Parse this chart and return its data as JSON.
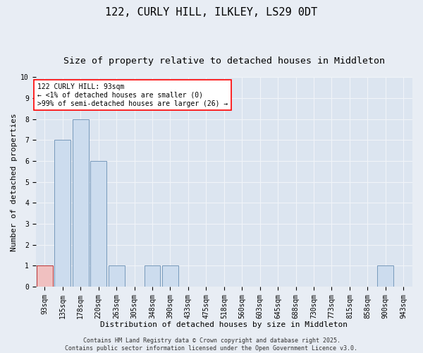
{
  "title1": "122, CURLY HILL, ILKLEY, LS29 0DT",
  "title2": "Size of property relative to detached houses in Middleton",
  "xlabel": "Distribution of detached houses by size in Middleton",
  "ylabel": "Number of detached properties",
  "categories": [
    "93sqm",
    "135sqm",
    "178sqm",
    "220sqm",
    "263sqm",
    "305sqm",
    "348sqm",
    "390sqm",
    "433sqm",
    "475sqm",
    "518sqm",
    "560sqm",
    "603sqm",
    "645sqm",
    "688sqm",
    "730sqm",
    "773sqm",
    "815sqm",
    "858sqm",
    "900sqm",
    "943sqm"
  ],
  "values": [
    1,
    7,
    8,
    6,
    1,
    0,
    1,
    1,
    0,
    0,
    0,
    0,
    0,
    0,
    0,
    0,
    0,
    0,
    0,
    1,
    0
  ],
  "bar_colors": [
    "#f0c0c0",
    "#ccdcee",
    "#ccdcee",
    "#ccdcee",
    "#ccdcee",
    "#ccdcee",
    "#ccdcee",
    "#ccdcee",
    "#ccdcee",
    "#ccdcee",
    "#ccdcee",
    "#ccdcee",
    "#ccdcee",
    "#ccdcee",
    "#ccdcee",
    "#ccdcee",
    "#ccdcee",
    "#ccdcee",
    "#ccdcee",
    "#ccdcee",
    "#ccdcee"
  ],
  "bar_edge_colors": [
    "#bb3333",
    "#7799bb",
    "#7799bb",
    "#7799bb",
    "#7799bb",
    "#7799bb",
    "#7799bb",
    "#7799bb",
    "#7799bb",
    "#7799bb",
    "#7799bb",
    "#7799bb",
    "#7799bb",
    "#7799bb",
    "#7799bb",
    "#7799bb",
    "#7799bb",
    "#7799bb",
    "#7799bb",
    "#7799bb",
    "#7799bb"
  ],
  "ylim": [
    0,
    10
  ],
  "yticks": [
    0,
    1,
    2,
    3,
    4,
    5,
    6,
    7,
    8,
    9,
    10
  ],
  "annotation_text": "122 CURLY HILL: 93sqm\n← <1% of detached houses are smaller (0)\n>99% of semi-detached houses are larger (26) →",
  "footer": "Contains HM Land Registry data © Crown copyright and database right 2025.\nContains public sector information licensed under the Open Government Licence v3.0.",
  "bg_color": "#e8edf4",
  "plot_bg_color": "#dce5f0",
  "grid_color": "#f0f4f8",
  "title_fontsize": 11,
  "subtitle_fontsize": 9.5,
  "label_fontsize": 8,
  "tick_fontsize": 7,
  "annot_fontsize": 7,
  "footer_fontsize": 6
}
